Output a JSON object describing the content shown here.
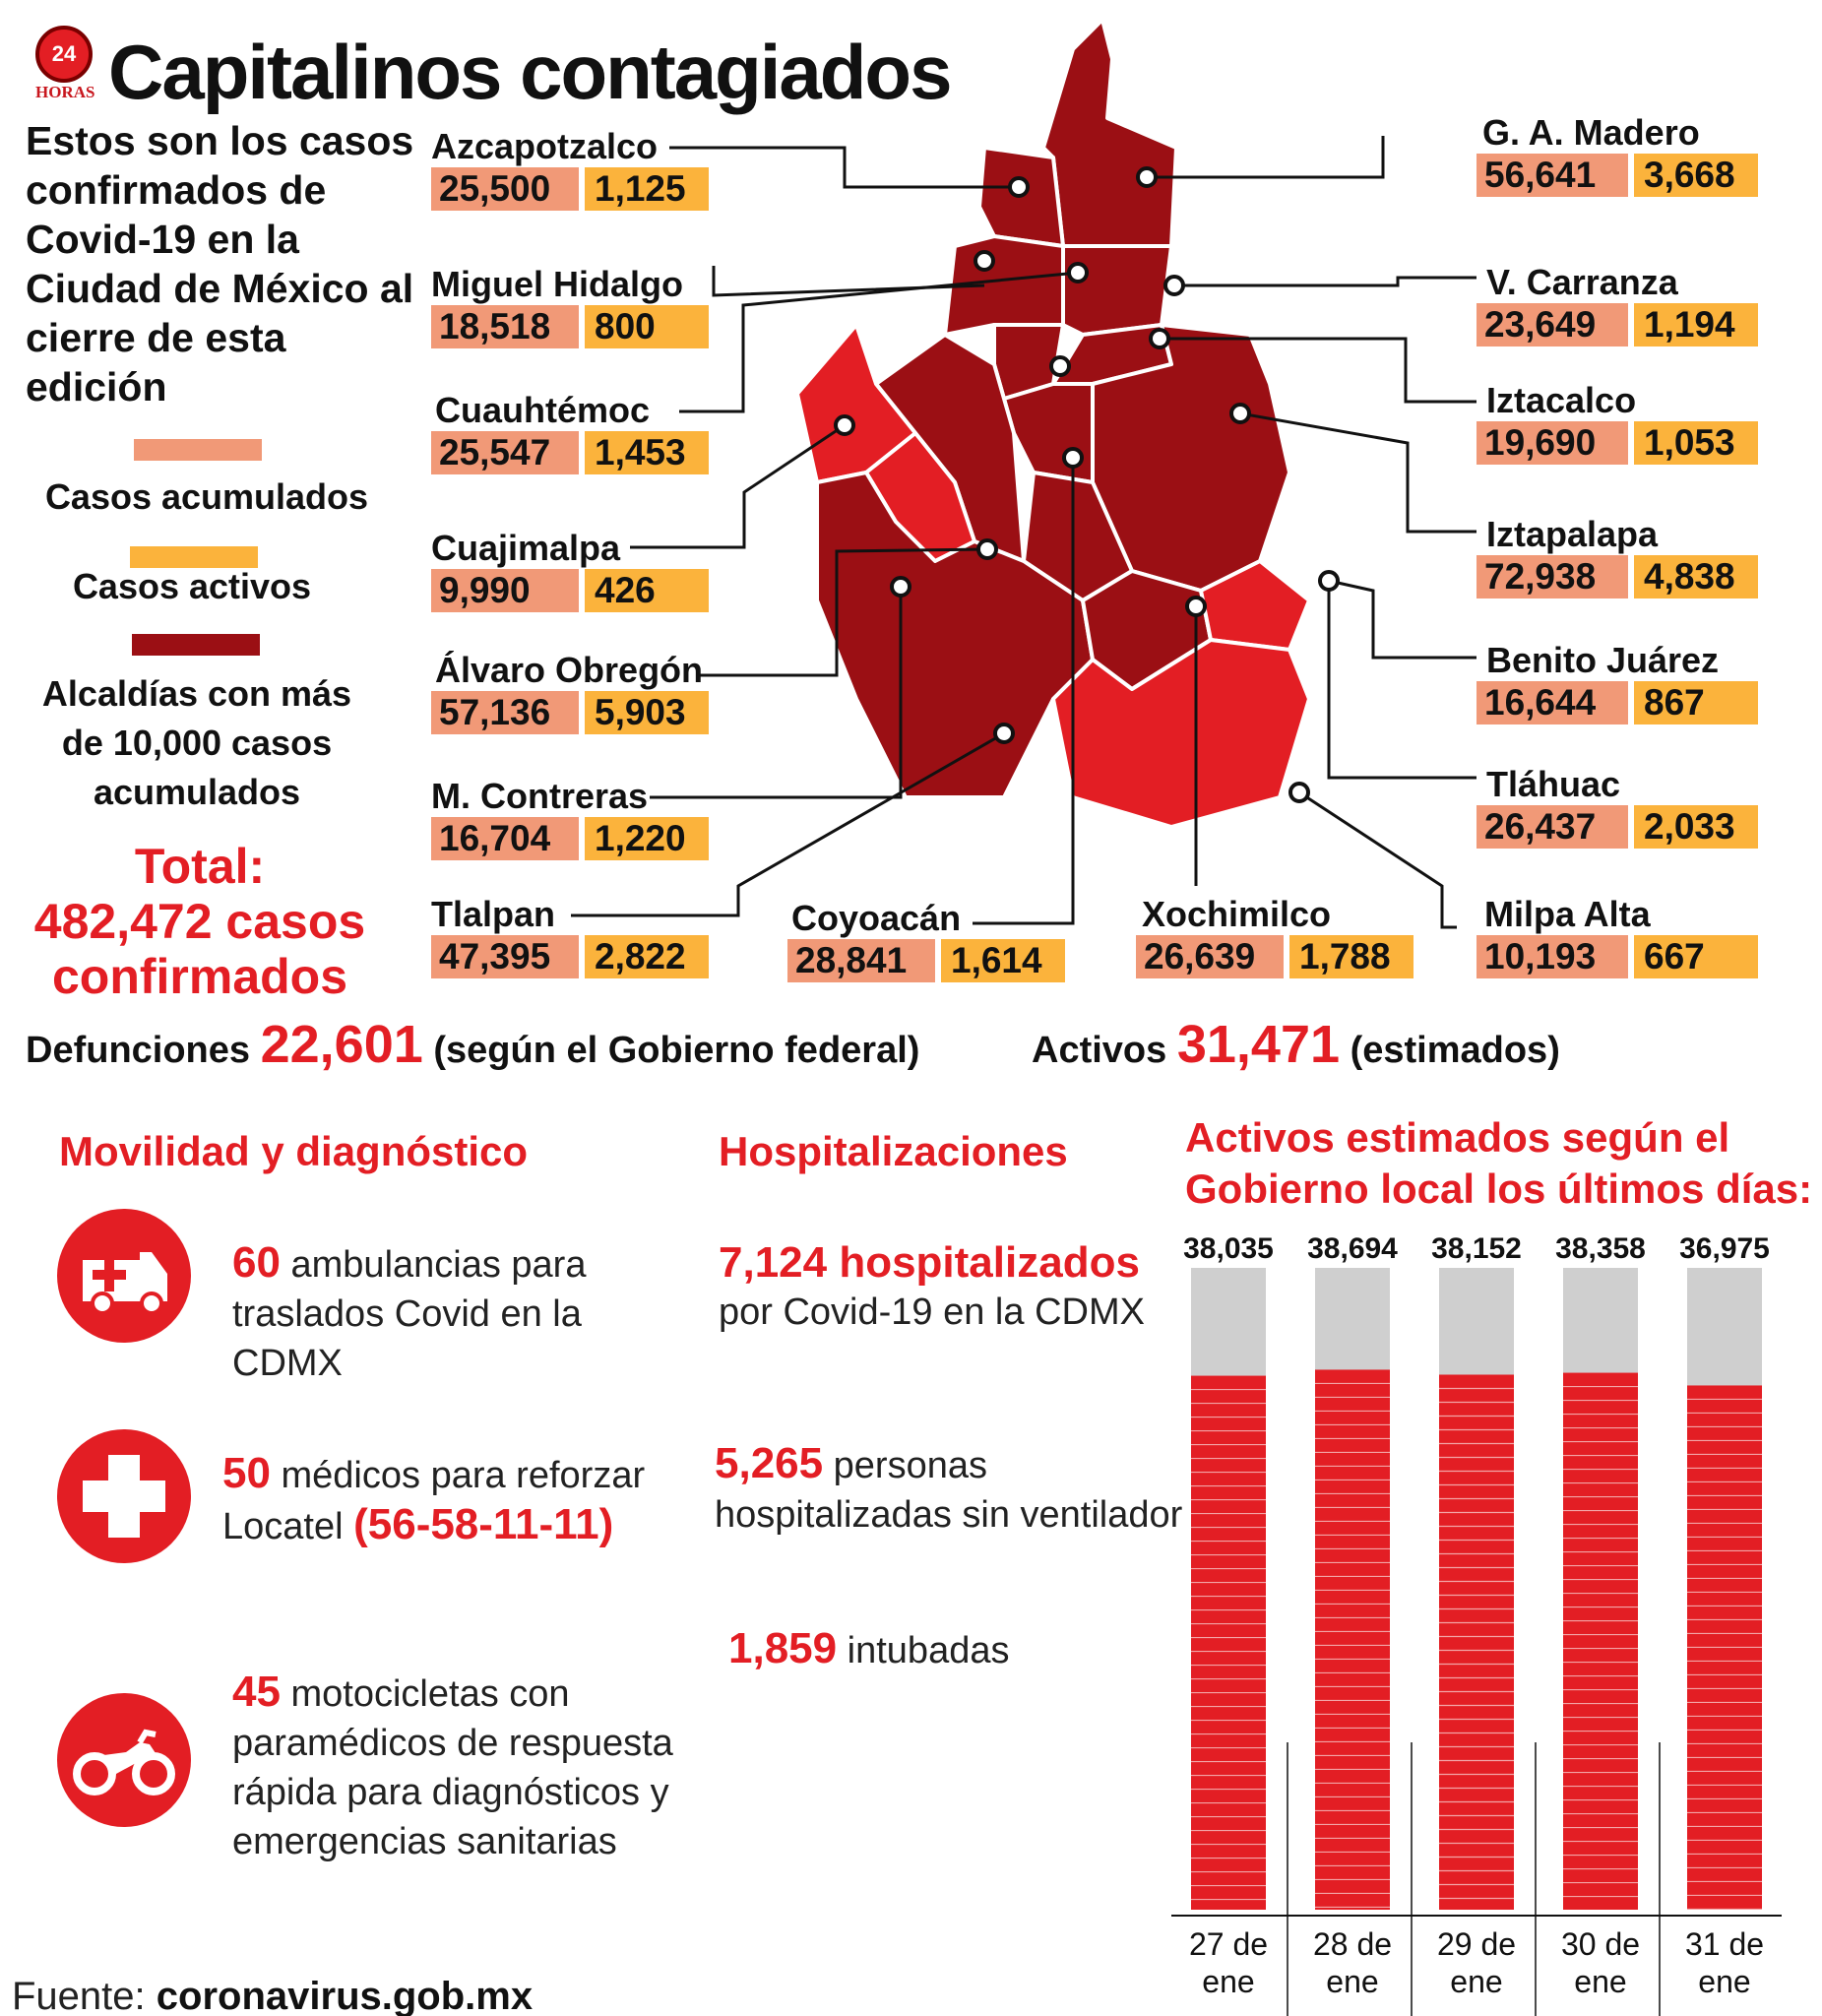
{
  "header": {
    "title": "Capitalinos contagiados",
    "logo": {
      "number": "24",
      "word": "HORAS"
    }
  },
  "intro": "Estos son los casos confirmados de Covid-19 en la Ciudad de México al cierre de esta edición",
  "legend": {
    "accumulated": {
      "label": "Casos acumulados",
      "color": "#f19977"
    },
    "active": {
      "label": "Casos activos",
      "color": "#fbb33c"
    },
    "over10k": {
      "label": "Alcaldías con más de 10,000 casos acumulados",
      "color": "#9b0f14"
    }
  },
  "total": {
    "line1": "Total:",
    "line2": "482,472 casos",
    "line3": "confirmados"
  },
  "alcaldias": [
    {
      "name": "Azcapotzalco",
      "accumulated": "25,500",
      "active": "1,125"
    },
    {
      "name": "Miguel Hidalgo",
      "accumulated": "18,518",
      "active": "800"
    },
    {
      "name": "Cuauhtémoc",
      "accumulated": "25,547",
      "active": "1,453"
    },
    {
      "name": "Cuajimalpa",
      "accumulated": "9,990",
      "active": "426"
    },
    {
      "name": "Álvaro Obregón",
      "accumulated": "57,136",
      "active": "5,903"
    },
    {
      "name": "M. Contreras",
      "accumulated": "16,704",
      "active": "1,220"
    },
    {
      "name": "Tlalpan",
      "accumulated": "47,395",
      "active": "2,822"
    },
    {
      "name": "Coyoacán",
      "accumulated": "28,841",
      "active": "1,614"
    },
    {
      "name": "Xochimilco",
      "accumulated": "26,639",
      "active": "1,788"
    },
    {
      "name": "G. A. Madero",
      "accumulated": "56,641",
      "active": "3,668"
    },
    {
      "name": "V. Carranza",
      "accumulated": "23,649",
      "active": "1,194"
    },
    {
      "name": "Iztacalco",
      "accumulated": "19,690",
      "active": "1,053"
    },
    {
      "name": "Iztapalapa",
      "accumulated": "72,938",
      "active": "4,838"
    },
    {
      "name": "Benito Juárez",
      "accumulated": "16,644",
      "active": "867"
    },
    {
      "name": "Tláhuac",
      "accumulated": "26,437",
      "active": "2,033"
    },
    {
      "name": "Milpa Alta",
      "accumulated": "10,193",
      "active": "667"
    }
  ],
  "summary": {
    "deaths_label": "Defunciones",
    "deaths_value": "22,601",
    "deaths_note": "(según el Gobierno federal)",
    "active_label": "Activos",
    "active_value": "31,471",
    "active_note": "(estimados)"
  },
  "mobility": {
    "title": "Movilidad y diagnóstico",
    "items": [
      {
        "icon": "ambulance-icon",
        "num": "60",
        "text": " ambulancias para traslados Covid en la CDMX"
      },
      {
        "icon": "medical-cross-icon",
        "num": "50",
        "text": " médicos para reforzar Locatel ",
        "extra": "(56-58-11-11)"
      },
      {
        "icon": "motorcycle-icon",
        "num": "45",
        "text": " motocicletas con paramédicos de respuesta rápida para diagnósticos y emergencias sanitarias"
      }
    ]
  },
  "hospital": {
    "title": "Hospitalizaciones",
    "items": [
      {
        "num": "7,124 hospitalizados",
        "text": "por Covid-19 en la CDMX"
      },
      {
        "num": "5,265",
        "text": " personas hospitalizadas sin ventilador"
      },
      {
        "num": "1,859",
        "text": " intubadas"
      }
    ]
  },
  "chart_data": {
    "type": "bar",
    "title": "Activos estimados según el Gobierno local los últimos días:",
    "categories": [
      "27 de ene",
      "28 de ene",
      "29 de ene",
      "30 de ene",
      "31 de ene"
    ],
    "values": [
      38035,
      38694,
      38152,
      38358,
      36975
    ],
    "value_labels": [
      "38,035",
      "38,694",
      "38,152",
      "38,358",
      "36,975"
    ],
    "colors": {
      "bar": "#e31e24",
      "background_column": "#cfcfcf"
    }
  },
  "source": {
    "label": "Fuente:",
    "value": "coronavirus.gob.mx"
  }
}
